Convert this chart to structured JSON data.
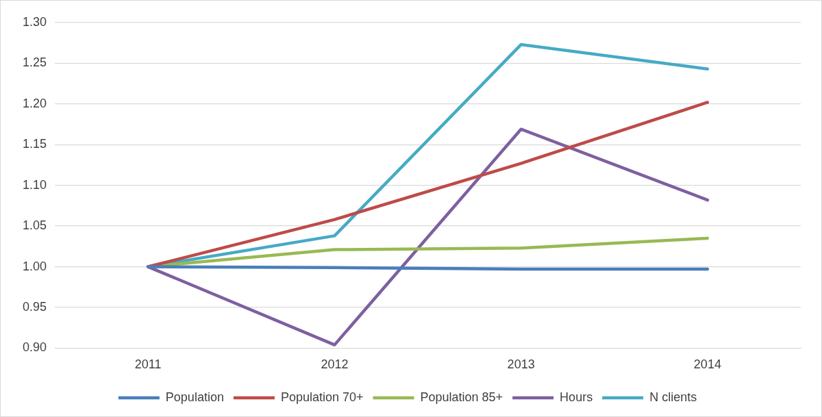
{
  "chart_data": {
    "type": "line",
    "categories": [
      "2011",
      "2012",
      "2013",
      "2014"
    ],
    "series": [
      {
        "name": "Population",
        "color": "#4a7ebb",
        "values": [
          1.0,
          0.999,
          0.997,
          0.997
        ]
      },
      {
        "name": "Population 70+",
        "color": "#be4b48",
        "values": [
          1.0,
          1.058,
          1.127,
          1.202
        ]
      },
      {
        "name": "Population 85+",
        "color": "#98b954",
        "values": [
          1.0,
          1.021,
          1.023,
          1.035
        ]
      },
      {
        "name": "Hours",
        "color": "#7d60a0",
        "values": [
          1.0,
          0.904,
          1.169,
          1.082
        ]
      },
      {
        "name": "N clients",
        "color": "#46aac5",
        "values": [
          1.0,
          1.038,
          1.273,
          1.243
        ]
      }
    ],
    "ylim": [
      0.9,
      1.3
    ],
    "yticks": [
      {
        "value": 0.9,
        "label": "0.90"
      },
      {
        "value": 0.95,
        "label": "0.95"
      },
      {
        "value": 1.0,
        "label": "1.00"
      },
      {
        "value": 1.05,
        "label": "1.05"
      },
      {
        "value": 1.1,
        "label": "1.10"
      },
      {
        "value": 1.15,
        "label": "1.15"
      },
      {
        "value": 1.2,
        "label": "1.20"
      },
      {
        "value": 1.25,
        "label": "1.25"
      },
      {
        "value": 1.3,
        "label": "1.30"
      }
    ],
    "grid": "y",
    "legend": "bottom",
    "marker": "none",
    "line_style": "solid"
  }
}
